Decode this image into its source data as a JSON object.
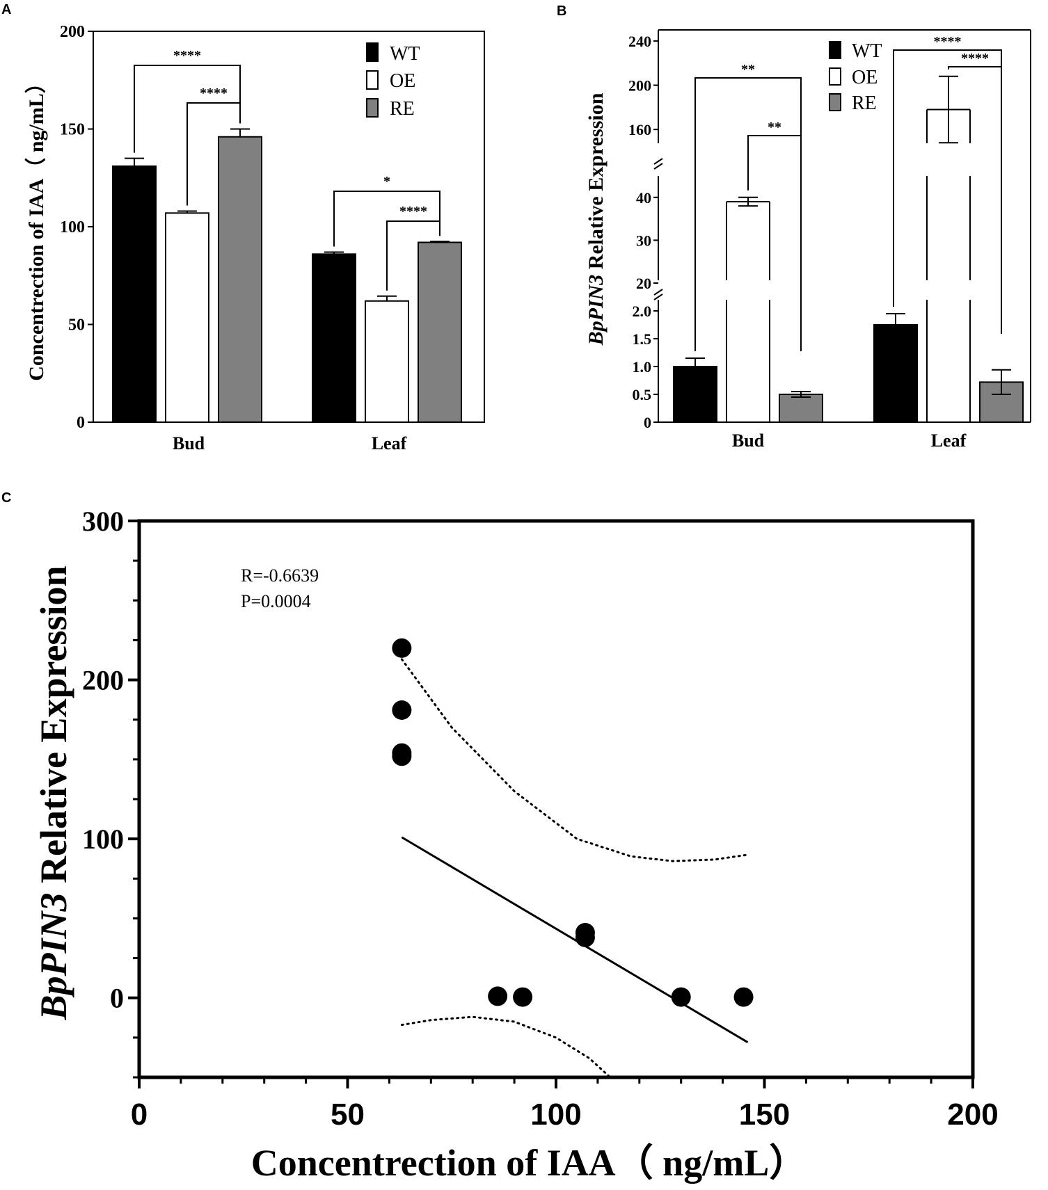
{
  "panels": {
    "a_letter": "A",
    "b_letter": "B",
    "c_letter": "C"
  },
  "legend": {
    "wt": "WT",
    "oe": "OE",
    "re": "RE"
  },
  "colors": {
    "wt": "#000000",
    "oe": "#ffffff",
    "re": "#808080",
    "axis": "#000000"
  },
  "chart_data": [
    {
      "id": "A",
      "type": "bar",
      "title": "",
      "xlabel": "",
      "ylabel": "Concentrection of IAA（ ng/mL）",
      "categories": [
        "Bud",
        "Leaf"
      ],
      "ylim": [
        0,
        200
      ],
      "yticks": [
        "0",
        "50",
        "100",
        "150",
        "200"
      ],
      "series": [
        {
          "name": "WT",
          "values": [
            131,
            86
          ],
          "errors": [
            4,
            1
          ]
        },
        {
          "name": "OE",
          "values": [
            107,
            62
          ],
          "errors": [
            1,
            2.5
          ]
        },
        {
          "name": "RE",
          "values": [
            146,
            92
          ],
          "errors": [
            4,
            0.5
          ]
        }
      ],
      "significance": [
        {
          "label": "****",
          "between": [
            "WT",
            "RE"
          ],
          "category": "Bud"
        },
        {
          "label": "****",
          "between": [
            "OE",
            "RE"
          ],
          "category": "Bud"
        },
        {
          "label": "*",
          "between": [
            "WT",
            "RE"
          ],
          "category": "Leaf"
        },
        {
          "label": "****",
          "between": [
            "OE",
            "RE"
          ],
          "category": "Leaf"
        }
      ]
    },
    {
      "id": "B",
      "type": "bar",
      "title": "",
      "xlabel": "",
      "ylabel_italic": "BpPIN3",
      "ylabel_rest": " Relative Expression",
      "categories": [
        "Bud",
        "Leaf"
      ],
      "axis_break_segments": [
        [
          0,
          2.2
        ],
        [
          20,
          45
        ],
        [
          145,
          250
        ]
      ],
      "yticks_low": [
        "0",
        "0.5",
        "1.0",
        "1.5",
        "2.0"
      ],
      "yticks_mid": [
        "20",
        "30",
        "40"
      ],
      "yticks_high": [
        "160",
        "200",
        "240"
      ],
      "series": [
        {
          "name": "WT",
          "values": [
            1.0,
            1.75
          ],
          "errors": [
            0.15,
            0.2
          ]
        },
        {
          "name": "OE",
          "values": [
            39,
            178
          ],
          "errors": [
            1,
            30
          ]
        },
        {
          "name": "RE",
          "values": [
            0.5,
            0.72
          ],
          "errors": [
            0.05,
            0.22
          ]
        }
      ],
      "significance": [
        {
          "label": "**",
          "between": [
            "WT",
            "RE"
          ],
          "category": "Bud"
        },
        {
          "label": "**",
          "between": [
            "OE",
            "RE"
          ],
          "category": "Bud"
        },
        {
          "label": "****",
          "between": [
            "WT",
            "RE"
          ],
          "category": "Leaf"
        },
        {
          "label": "****",
          "between": [
            "OE",
            "RE"
          ],
          "category": "Leaf"
        }
      ]
    },
    {
      "id": "C",
      "type": "scatter",
      "title": "",
      "xlabel": "Concentrection of IAA（ ng/mL）",
      "ylabel_italic": "BpPIN3",
      "ylabel_rest": " Relative Expression",
      "xlim": [
        0,
        200
      ],
      "ylim": [
        -50,
        300
      ],
      "xticks": [
        "0",
        "50",
        "100",
        "150",
        "200"
      ],
      "yticks": [
        "0",
        "100",
        "200",
        "300"
      ],
      "points": [
        {
          "x": 63,
          "y": 220
        },
        {
          "x": 63,
          "y": 181
        },
        {
          "x": 63,
          "y": 154
        },
        {
          "x": 63,
          "y": 152
        },
        {
          "x": 107,
          "y": 41
        },
        {
          "x": 107,
          "y": 38
        },
        {
          "x": 86,
          "y": 1
        },
        {
          "x": 92,
          "y": 0.5
        },
        {
          "x": 130,
          "y": 0.5
        },
        {
          "x": 145,
          "y": 0.5
        }
      ],
      "fit_line": {
        "x": [
          63,
          146
        ],
        "y": [
          101,
          -28
        ]
      },
      "ci_upper": {
        "x": [
          63,
          75,
          90,
          105,
          118,
          128,
          138,
          146
        ],
        "y": [
          213,
          170,
          130,
          100,
          89,
          86,
          87,
          90
        ]
      },
      "ci_lower": {
        "x": [
          63,
          70,
          80,
          90,
          100,
          108,
          113
        ],
        "y": [
          -17,
          -14,
          -12,
          -15,
          -25,
          -38,
          -50
        ]
      },
      "stats": {
        "r": "R=-0.6639",
        "p": "P=0.0004"
      }
    }
  ]
}
